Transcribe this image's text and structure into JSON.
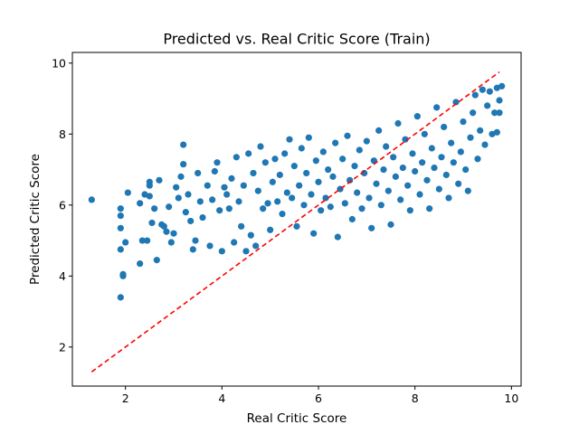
{
  "chart_data": {
    "type": "scatter",
    "title": "Predicted vs. Real Critic Score (Train)",
    "xlabel": "Real Critic Score",
    "ylabel": "Predicted Critic Score",
    "xlim": [
      0.9,
      10.2
    ],
    "ylim": [
      0.9,
      10.3
    ],
    "xticks": [
      2,
      4,
      6,
      8,
      10
    ],
    "yticks": [
      2,
      4,
      6,
      8,
      10
    ],
    "grid": false,
    "point_color": "#1f77b4",
    "reference_line": {
      "style": "dashed",
      "color": "#ff0000",
      "points": [
        [
          1.3,
          1.3
        ],
        [
          9.75,
          9.75
        ]
      ]
    },
    "points": [
      [
        1.3,
        6.15
      ],
      [
        1.9,
        3.4
      ],
      [
        1.9,
        4.75
      ],
      [
        1.95,
        4.0
      ],
      [
        1.95,
        4.05
      ],
      [
        1.9,
        5.35
      ],
      [
        1.9,
        5.7
      ],
      [
        1.9,
        5.9
      ],
      [
        2.0,
        4.95
      ],
      [
        2.05,
        6.35
      ],
      [
        2.3,
        4.35
      ],
      [
        2.3,
        6.05
      ],
      [
        2.35,
        5.0
      ],
      [
        2.45,
        5.0
      ],
      [
        2.4,
        6.3
      ],
      [
        2.5,
        6.25
      ],
      [
        2.5,
        6.55
      ],
      [
        2.5,
        6.65
      ],
      [
        2.55,
        5.5
      ],
      [
        2.65,
        4.45
      ],
      [
        2.6,
        5.9
      ],
      [
        2.7,
        6.7
      ],
      [
        2.75,
        5.45
      ],
      [
        2.8,
        5.4
      ],
      [
        2.85,
        5.25
      ],
      [
        2.9,
        5.95
      ],
      [
        2.95,
        4.95
      ],
      [
        3.0,
        5.2
      ],
      [
        3.05,
        6.5
      ],
      [
        3.1,
        6.2
      ],
      [
        3.15,
        6.8
      ],
      [
        3.2,
        7.15
      ],
      [
        3.2,
        7.7
      ],
      [
        3.25,
        5.8
      ],
      [
        3.3,
        6.3
      ],
      [
        3.35,
        5.55
      ],
      [
        3.4,
        4.75
      ],
      [
        3.45,
        5.0
      ],
      [
        3.5,
        6.9
      ],
      [
        3.55,
        6.1
      ],
      [
        3.6,
        5.65
      ],
      [
        3.7,
        6.55
      ],
      [
        3.75,
        4.85
      ],
      [
        3.8,
        6.15
      ],
      [
        3.85,
        6.95
      ],
      [
        3.9,
        7.2
      ],
      [
        3.95,
        5.85
      ],
      [
        4.0,
        4.7
      ],
      [
        4.05,
        6.5
      ],
      [
        4.1,
        6.3
      ],
      [
        4.15,
        5.9
      ],
      [
        4.2,
        6.75
      ],
      [
        4.25,
        4.95
      ],
      [
        4.3,
        7.35
      ],
      [
        4.35,
        6.1
      ],
      [
        4.4,
        5.4
      ],
      [
        4.45,
        6.55
      ],
      [
        4.5,
        4.7
      ],
      [
        4.55,
        7.45
      ],
      [
        4.6,
        5.15
      ],
      [
        4.65,
        6.9
      ],
      [
        4.7,
        4.85
      ],
      [
        4.75,
        6.4
      ],
      [
        4.8,
        7.65
      ],
      [
        4.85,
        5.9
      ],
      [
        4.9,
        7.2
      ],
      [
        4.95,
        6.05
      ],
      [
        5.0,
        5.3
      ],
      [
        5.05,
        6.65
      ],
      [
        5.1,
        7.3
      ],
      [
        5.15,
        6.1
      ],
      [
        5.2,
        6.85
      ],
      [
        5.25,
        5.75
      ],
      [
        5.3,
        7.45
      ],
      [
        5.35,
        6.35
      ],
      [
        5.4,
        7.85
      ],
      [
        5.45,
        6.2
      ],
      [
        5.5,
        7.1
      ],
      [
        5.55,
        5.4
      ],
      [
        5.6,
        6.55
      ],
      [
        5.65,
        7.6
      ],
      [
        5.7,
        6.0
      ],
      [
        5.75,
        6.9
      ],
      [
        5.8,
        7.9
      ],
      [
        5.85,
        6.3
      ],
      [
        5.9,
        5.2
      ],
      [
        5.95,
        7.25
      ],
      [
        6.0,
        6.65
      ],
      [
        6.05,
        5.85
      ],
      [
        6.1,
        7.5
      ],
      [
        6.15,
        6.2
      ],
      [
        6.2,
        7.0
      ],
      [
        6.25,
        5.95
      ],
      [
        6.3,
        6.8
      ],
      [
        6.35,
        7.75
      ],
      [
        6.4,
        5.1
      ],
      [
        6.45,
        6.45
      ],
      [
        6.5,
        7.3
      ],
      [
        6.55,
        6.05
      ],
      [
        6.6,
        7.95
      ],
      [
        6.65,
        6.7
      ],
      [
        6.7,
        5.6
      ],
      [
        6.75,
        7.1
      ],
      [
        6.8,
        6.35
      ],
      [
        6.85,
        7.55
      ],
      [
        6.9,
        5.9
      ],
      [
        6.95,
        6.9
      ],
      [
        7.0,
        7.8
      ],
      [
        7.05,
        6.2
      ],
      [
        7.1,
        5.35
      ],
      [
        7.15,
        7.25
      ],
      [
        7.2,
        6.6
      ],
      [
        7.25,
        8.1
      ],
      [
        7.3,
        6.0
      ],
      [
        7.35,
        7.0
      ],
      [
        7.4,
        7.65
      ],
      [
        7.45,
        6.4
      ],
      [
        7.5,
        5.45
      ],
      [
        7.55,
        7.35
      ],
      [
        7.6,
        6.8
      ],
      [
        7.65,
        8.3
      ],
      [
        7.7,
        6.15
      ],
      [
        7.75,
        7.05
      ],
      [
        7.8,
        7.85
      ],
      [
        7.85,
        6.55
      ],
      [
        7.9,
        5.85
      ],
      [
        7.95,
        7.45
      ],
      [
        8.0,
        6.95
      ],
      [
        8.05,
        8.5
      ],
      [
        8.1,
        6.3
      ],
      [
        8.15,
        7.2
      ],
      [
        8.2,
        8.0
      ],
      [
        8.25,
        6.7
      ],
      [
        8.3,
        5.9
      ],
      [
        8.35,
        7.6
      ],
      [
        8.4,
        7.05
      ],
      [
        8.45,
        8.75
      ],
      [
        8.5,
        6.45
      ],
      [
        8.55,
        7.35
      ],
      [
        8.6,
        8.2
      ],
      [
        8.65,
        6.85
      ],
      [
        8.7,
        6.2
      ],
      [
        8.75,
        7.75
      ],
      [
        8.8,
        7.2
      ],
      [
        8.85,
        8.9
      ],
      [
        8.9,
        6.6
      ],
      [
        8.95,
        7.5
      ],
      [
        9.0,
        8.35
      ],
      [
        9.05,
        7.0
      ],
      [
        9.1,
        6.4
      ],
      [
        9.15,
        7.9
      ],
      [
        9.2,
        8.6
      ],
      [
        9.25,
        9.1
      ],
      [
        9.3,
        7.3
      ],
      [
        9.35,
        8.1
      ],
      [
        9.4,
        9.25
      ],
      [
        9.45,
        7.7
      ],
      [
        9.5,
        8.8
      ],
      [
        9.55,
        9.2
      ],
      [
        9.6,
        8.0
      ],
      [
        9.65,
        8.6
      ],
      [
        9.7,
        9.3
      ],
      [
        9.75,
        8.95
      ],
      [
        9.8,
        9.35
      ],
      [
        9.7,
        8.05
      ],
      [
        9.75,
        8.6
      ]
    ]
  }
}
